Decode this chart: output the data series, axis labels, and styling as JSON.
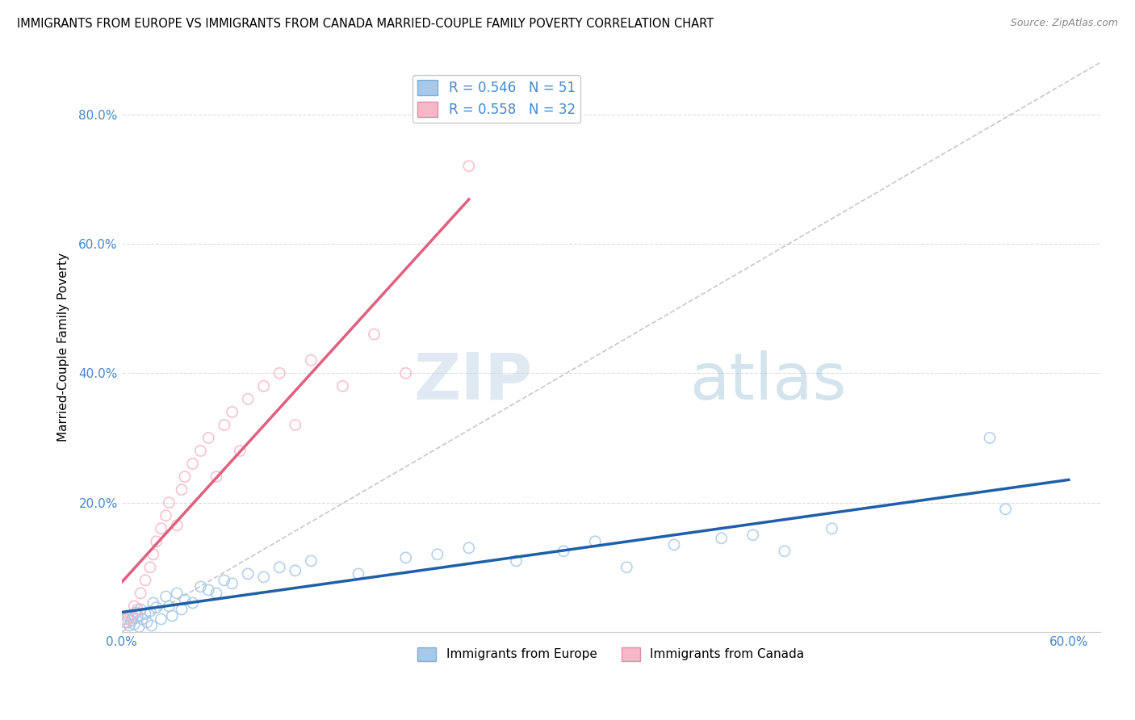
{
  "title": "IMMIGRANTS FROM EUROPE VS IMMIGRANTS FROM CANADA MARRIED-COUPLE FAMILY POVERTY CORRELATION CHART",
  "source": "Source: ZipAtlas.com",
  "ylabel": "Married-Couple Family Poverty",
  "xlim": [
    0.0,
    0.62
  ],
  "ylim": [
    0.0,
    0.88
  ],
  "europe_color": "#A8C8E8",
  "europe_edge_color": "#7BAFD4",
  "canada_color": "#F4B8C8",
  "canada_edge_color": "#E090A8",
  "europe_line_color": "#1E5FA8",
  "canada_line_color": "#E06080",
  "diagonal_color": "#C8C8C8",
  "R_europe": 0.546,
  "N_europe": 51,
  "R_canada": 0.558,
  "N_canada": 32,
  "legend_label_europe": "Immigrants from Europe",
  "legend_label_canada": "Immigrants from Canada",
  "watermark_zip": "ZIP",
  "watermark_atlas": "atlas",
  "background_color": "#FFFFFF",
  "grid_color": "#DDDDDD",
  "tick_color": "#4488CC",
  "europe_scatter_x": [
    0.002,
    0.003,
    0.004,
    0.005,
    0.006,
    0.007,
    0.008,
    0.009,
    0.01,
    0.011,
    0.012,
    0.013,
    0.015,
    0.016,
    0.018,
    0.019,
    0.02,
    0.022,
    0.025,
    0.028,
    0.03,
    0.032,
    0.035,
    0.038,
    0.04,
    0.045,
    0.05,
    0.055,
    0.06,
    0.065,
    0.07,
    0.08,
    0.09,
    0.1,
    0.11,
    0.12,
    0.15,
    0.18,
    0.2,
    0.22,
    0.25,
    0.28,
    0.3,
    0.32,
    0.35,
    0.38,
    0.4,
    0.42,
    0.45,
    0.55,
    0.56
  ],
  "europe_scatter_y": [
    0.02,
    0.015,
    0.025,
    0.01,
    0.018,
    0.022,
    0.012,
    0.03,
    0.025,
    0.008,
    0.035,
    0.02,
    0.028,
    0.015,
    0.032,
    0.01,
    0.045,
    0.038,
    0.02,
    0.055,
    0.04,
    0.025,
    0.06,
    0.035,
    0.05,
    0.045,
    0.07,
    0.065,
    0.06,
    0.08,
    0.075,
    0.09,
    0.085,
    0.1,
    0.095,
    0.11,
    0.09,
    0.115,
    0.12,
    0.13,
    0.11,
    0.125,
    0.14,
    0.1,
    0.135,
    0.145,
    0.15,
    0.125,
    0.16,
    0.3,
    0.19
  ],
  "canada_scatter_x": [
    0.002,
    0.004,
    0.006,
    0.008,
    0.01,
    0.012,
    0.015,
    0.018,
    0.02,
    0.022,
    0.025,
    0.028,
    0.03,
    0.035,
    0.038,
    0.04,
    0.045,
    0.05,
    0.055,
    0.06,
    0.065,
    0.07,
    0.075,
    0.08,
    0.09,
    0.1,
    0.11,
    0.12,
    0.14,
    0.16,
    0.18,
    0.22
  ],
  "canada_scatter_y": [
    0.015,
    0.02,
    0.025,
    0.04,
    0.035,
    0.06,
    0.08,
    0.1,
    0.12,
    0.14,
    0.16,
    0.18,
    0.2,
    0.165,
    0.22,
    0.24,
    0.26,
    0.28,
    0.3,
    0.24,
    0.32,
    0.34,
    0.28,
    0.36,
    0.38,
    0.4,
    0.32,
    0.42,
    0.38,
    0.46,
    0.4,
    0.72
  ]
}
